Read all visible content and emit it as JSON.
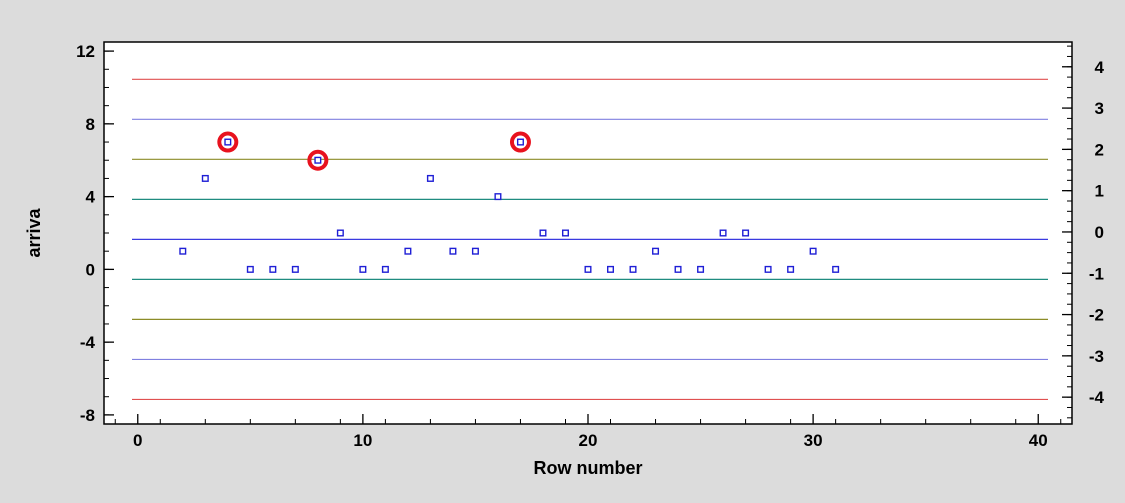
{
  "chart_data": {
    "type": "scatter",
    "title": "",
    "xlabel": "Row number",
    "ylabel": "arriva",
    "xlim": [
      -1.5,
      41.5
    ],
    "ylim": [
      -8.5,
      12.5
    ],
    "y2lim": [
      -4.65,
      4.6
    ],
    "x_ticks": [
      0,
      10,
      20,
      30,
      40
    ],
    "y_ticks": [
      -8,
      -4,
      0,
      4,
      8,
      12
    ],
    "y2_ticks": [
      -4,
      -3,
      -2,
      -1,
      0,
      1,
      2,
      3,
      4
    ],
    "x_minor_step": 2,
    "y_minor_step": 1,
    "y2_minor_step": 0.25,
    "grid": false,
    "points": [
      {
        "x": 2,
        "y": 1
      },
      {
        "x": 3,
        "y": 5
      },
      {
        "x": 4,
        "y": 7,
        "flagged": true
      },
      {
        "x": 5,
        "y": 0
      },
      {
        "x": 6,
        "y": 0
      },
      {
        "x": 7,
        "y": 0
      },
      {
        "x": 8,
        "y": 6,
        "flagged": true
      },
      {
        "x": 9,
        "y": 2
      },
      {
        "x": 10,
        "y": 0
      },
      {
        "x": 11,
        "y": 0
      },
      {
        "x": 12,
        "y": 1
      },
      {
        "x": 13,
        "y": 5
      },
      {
        "x": 14,
        "y": 1
      },
      {
        "x": 15,
        "y": 1
      },
      {
        "x": 16,
        "y": 4
      },
      {
        "x": 17,
        "y": 7,
        "flagged": true
      },
      {
        "x": 18,
        "y": 2
      },
      {
        "x": 19,
        "y": 2
      },
      {
        "x": 20,
        "y": 0
      },
      {
        "x": 21,
        "y": 0
      },
      {
        "x": 22,
        "y": 0
      },
      {
        "x": 23,
        "y": 1
      },
      {
        "x": 24,
        "y": 0
      },
      {
        "x": 25,
        "y": 0
      },
      {
        "x": 26,
        "y": 2
      },
      {
        "x": 27,
        "y": 2
      },
      {
        "x": 28,
        "y": 0
      },
      {
        "x": 29,
        "y": 0
      },
      {
        "x": 30,
        "y": 1
      },
      {
        "x": 31,
        "y": 0
      }
    ],
    "reference_lines": [
      {
        "y": 10.45,
        "color": "#e05050"
      },
      {
        "y": 8.25,
        "color": "#8080e0"
      },
      {
        "y": 6.05,
        "color": "#8c8c28"
      },
      {
        "y": 3.85,
        "color": "#208c80"
      },
      {
        "y": 1.65,
        "color": "#3a3ae0"
      },
      {
        "y": -0.55,
        "color": "#208c80"
      },
      {
        "y": -2.75,
        "color": "#8c8c28"
      },
      {
        "y": -4.95,
        "color": "#8080e0"
      },
      {
        "y": -7.15,
        "color": "#e05050"
      }
    ],
    "colors": {
      "point": "#1f1fd6",
      "flag_ring": "#e8121e",
      "plot_background": "#ffffff",
      "page_background": "#dcdcdc"
    }
  }
}
